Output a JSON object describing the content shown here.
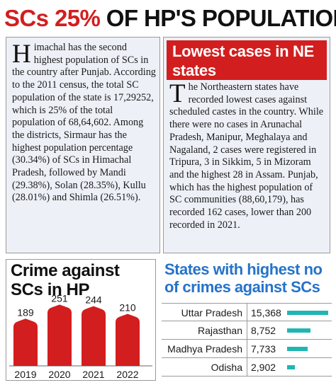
{
  "headline": {
    "red_part": "SCs 25%",
    "black_part": "OF HP'S POPULATION"
  },
  "left_panel": {
    "drop_cap": "H",
    "text": "imachal has the second highest population of SCs in the country after Punjab. According to the 2011 census, the total SC population of the state is 17,29252, which is 25% of the total population of 68,64,602. Among the districts, Sirmaur has the highest population percentage (30.34%) of SCs in Himachal Pradesh, followed by Mandi (29.38%), Solan (28.35%), Kullu (28.01%) and Shimla (26.51%)."
  },
  "right_panel": {
    "banner": "Lowest cases in NE states",
    "drop_cap": "T",
    "text": "he Northeastern states have recorded lowest cases against scheduled castes in the country. While there were no cases in Arunachal Pradesh, Manipur, Meghalaya and Nagaland, 2 cases were registered in Tripura, 3 in Sikkim, 5 in Mizoram and the highest 28 in Assam. Punjab, which has the highest population of SC communities (88,60,179), has recorded 162 cases, lower than 200 recorded in 2021."
  },
  "chart_data": [
    {
      "type": "bar",
      "title": "Crime against SCs in HP",
      "categories": [
        "2019",
        "2020",
        "2021",
        "2022"
      ],
      "values": [
        189,
        251,
        244,
        210
      ],
      "data_labels": [
        "189",
        "251",
        "244",
        "210"
      ],
      "ylim": [
        0,
        280
      ],
      "grid": false,
      "bar_color": "#d21e1e"
    },
    {
      "type": "bar",
      "orientation": "horizontal",
      "title": "States with highest no of crimes against SCs",
      "categories": [
        "Uttar Pradesh",
        "Rajasthan",
        "Madhya Pradesh",
        "Odisha"
      ],
      "values": [
        15368,
        8752,
        7733,
        2902
      ],
      "data_labels": [
        "15,368",
        "8,752",
        "7,733",
        "2,902"
      ],
      "xlim": [
        0,
        15368
      ],
      "bar_color": "#1fb6b3",
      "title_color": "#2673c9"
    }
  ]
}
